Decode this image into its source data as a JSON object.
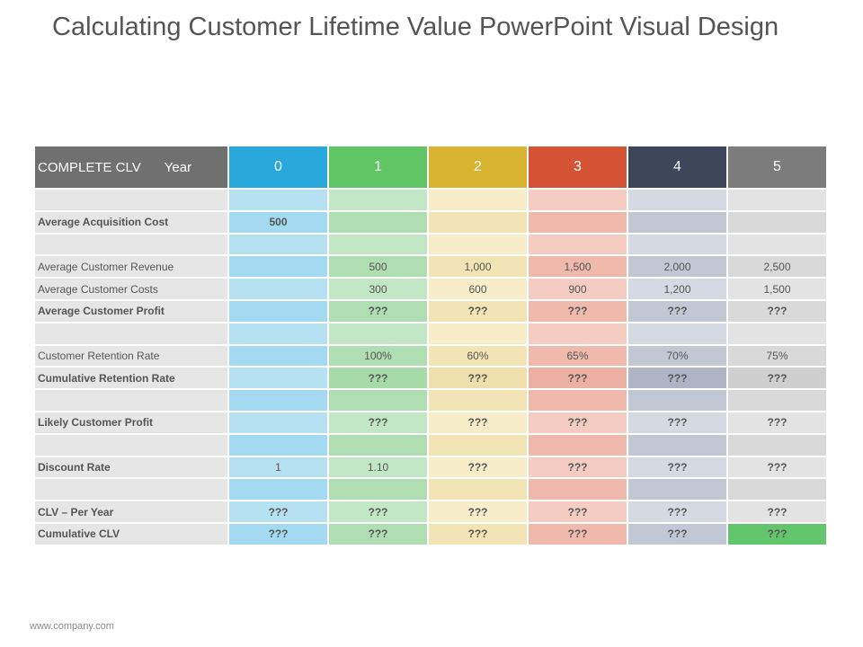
{
  "title": "Calculating Customer Lifetime Value PowerPoint Visual Design",
  "footer": "www.company.com",
  "table": {
    "corner_label": "COMPLETE CLV",
    "year_label": "Year",
    "years": [
      "0",
      "1",
      "2",
      "3",
      "4",
      "5"
    ],
    "header_colors": [
      "#29a8dc",
      "#5fc565",
      "#d9b431",
      "#d55435",
      "#3c475a",
      "#7c7c7c"
    ],
    "rows": [
      {
        "label": "",
        "values": [
          "",
          "",
          "",
          "",
          "",
          ""
        ]
      },
      {
        "label": "Average Acquisition Cost",
        "bold": true,
        "values": [
          "500",
          "",
          "",
          "",
          "",
          ""
        ]
      },
      {
        "label": "",
        "values": [
          "",
          "",
          "",
          "",
          "",
          ""
        ]
      },
      {
        "label": "Average Customer Revenue",
        "values": [
          "",
          "500",
          "1,000",
          "1,500",
          "2,000",
          "2,500"
        ]
      },
      {
        "label": "Average Customer Costs",
        "values": [
          "",
          "300",
          "600",
          "900",
          "1,200",
          "1,500"
        ]
      },
      {
        "label": "Average Customer Profit",
        "bold": true,
        "values": [
          "",
          "???",
          "???",
          "???",
          "???",
          "???"
        ]
      },
      {
        "label": "",
        "values": [
          "",
          "",
          "",
          "",
          "",
          ""
        ]
      },
      {
        "label": "Customer Retention Rate",
        "values": [
          "",
          "100%",
          "60%",
          "65%",
          "70%",
          "75%"
        ]
      },
      {
        "label": "Cumulative Retention Rate",
        "bold": true,
        "values": [
          "",
          "???",
          "???",
          "???",
          "???",
          "???"
        ]
      },
      {
        "label": "",
        "values": [
          "",
          "",
          "",
          "",
          "",
          ""
        ]
      },
      {
        "label": "Likely Customer Profit",
        "bold": true,
        "values": [
          "",
          "???",
          "???",
          "???",
          "???",
          "???"
        ]
      },
      {
        "label": "",
        "values": [
          "",
          "",
          "",
          "",
          "",
          ""
        ]
      },
      {
        "label": "Discount Rate",
        "bold": true,
        "values": [
          "1",
          "1.10",
          "???",
          "???",
          "???",
          "???"
        ]
      },
      {
        "label": "",
        "values": [
          "",
          "",
          "",
          "",
          "",
          ""
        ]
      },
      {
        "label": "CLV – Per Year",
        "bold": true,
        "values": [
          "???",
          "???",
          "???",
          "???",
          "???",
          "???"
        ]
      },
      {
        "label": "Cumulative CLV",
        "bold": true,
        "values": [
          "???",
          "???",
          "???",
          "???",
          "???",
          "???"
        ]
      }
    ]
  }
}
